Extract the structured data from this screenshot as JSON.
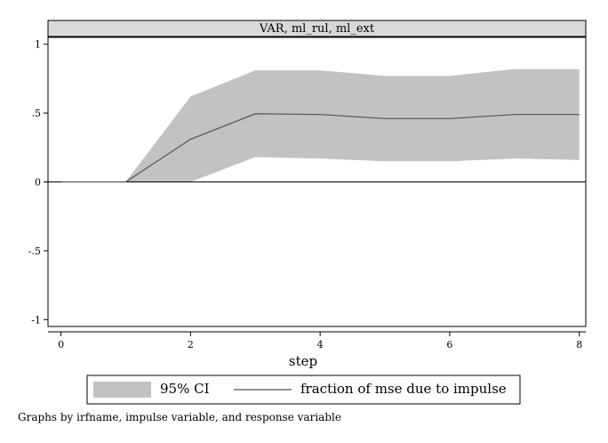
{
  "chart_data": {
    "type": "area",
    "panel_title": "VAR, ml_rul, ml_ext",
    "xlabel": "step",
    "ylabel": "",
    "xlim": [
      -0.2,
      8.1
    ],
    "ylim": [
      -1.05,
      1.05
    ],
    "x_ticks": [
      0,
      2,
      4,
      6,
      8
    ],
    "x_tick_labels": [
      "0",
      "2",
      "4",
      "6",
      "8"
    ],
    "y_ticks": [
      1,
      0.5,
      0,
      -0.5,
      -1
    ],
    "y_tick_labels": [
      "1",
      ".5",
      "0",
      "-.5",
      "-1"
    ],
    "reference_line_y": 0,
    "x": [
      0,
      1,
      2,
      3,
      4,
      5,
      6,
      7,
      8
    ],
    "series": [
      {
        "name": "95% CI",
        "kind": "band",
        "lower": [
          0,
          0,
          0,
          0.18,
          0.17,
          0.15,
          0.15,
          0.17,
          0.16
        ],
        "upper": [
          0,
          0,
          0.62,
          0.81,
          0.81,
          0.77,
          0.77,
          0.82,
          0.82
        ],
        "color": "#c2c2c2"
      },
      {
        "name": "fraction of mse due to impulse",
        "kind": "line",
        "values": [
          0,
          0,
          0.31,
          0.495,
          0.49,
          0.46,
          0.46,
          0.49,
          0.49
        ],
        "color": "#555555"
      }
    ],
    "grid": false,
    "legend_position": "bottom"
  },
  "note": "Graphs by irfname, impulse variable, and response variable",
  "colors": {
    "band": "#c2c2c2",
    "line": "#555555",
    "title_strip": "#d9d9d9",
    "axis": "#000000"
  }
}
